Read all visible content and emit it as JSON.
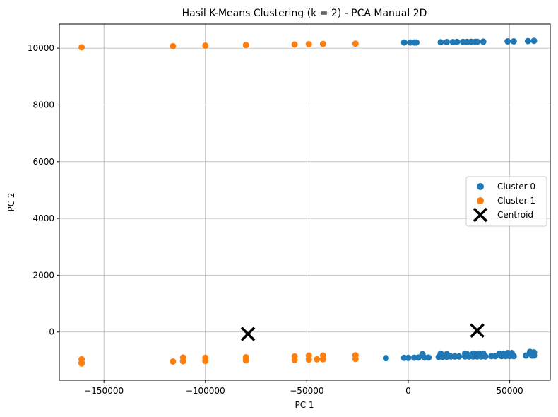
{
  "chart_data": {
    "type": "scatter",
    "title": "Hasil K-Means Clustering (k = 2) - PCA Manual 2D",
    "xlabel": "PC 1",
    "ylabel": "PC 2",
    "xlim": [
      -172000,
      70000
    ],
    "ylim": [
      -1700,
      10850
    ],
    "xticks": [
      -150000,
      -100000,
      -50000,
      0,
      50000
    ],
    "xtick_labels": [
      "−150000",
      "−100000",
      "−50000",
      "0",
      "50000"
    ],
    "yticks": [
      0,
      2000,
      4000,
      6000,
      8000,
      10000
    ],
    "ytick_labels": [
      "0",
      "2000",
      "4000",
      "6000",
      "8000",
      "10000"
    ],
    "grid": true,
    "legend_position": "center-right",
    "series": [
      {
        "name": "Cluster 0",
        "color": "#1f77b4",
        "points": [
          [
            -2000,
            10200
          ],
          [
            1000,
            10200
          ],
          [
            3000,
            10200
          ],
          [
            4000,
            10200
          ],
          [
            16000,
            10210
          ],
          [
            19000,
            10215
          ],
          [
            22000,
            10215
          ],
          [
            24000,
            10220
          ],
          [
            27000,
            10220
          ],
          [
            29000,
            10220
          ],
          [
            31000,
            10225
          ],
          [
            33000,
            10225
          ],
          [
            34000,
            10225
          ],
          [
            37000,
            10230
          ],
          [
            49000,
            10240
          ],
          [
            52000,
            10240
          ],
          [
            59000,
            10250
          ],
          [
            62000,
            10260
          ],
          [
            -11000,
            -920
          ],
          [
            -2000,
            -910
          ],
          [
            0,
            -910
          ],
          [
            3000,
            -905
          ],
          [
            5000,
            -900
          ],
          [
            7000,
            -780
          ],
          [
            8000,
            -900
          ],
          [
            10000,
            -900
          ],
          [
            15000,
            -880
          ],
          [
            16000,
            -760
          ],
          [
            17000,
            -870
          ],
          [
            19000,
            -780
          ],
          [
            19000,
            -870
          ],
          [
            21000,
            -860
          ],
          [
            23000,
            -860
          ],
          [
            25000,
            -860
          ],
          [
            28000,
            -760
          ],
          [
            28000,
            -860
          ],
          [
            29000,
            -780
          ],
          [
            30000,
            -860
          ],
          [
            32000,
            -760
          ],
          [
            32000,
            -860
          ],
          [
            33000,
            -780
          ],
          [
            34000,
            -860
          ],
          [
            35000,
            -760
          ],
          [
            36000,
            -860
          ],
          [
            37000,
            -760
          ],
          [
            38000,
            -860
          ],
          [
            41000,
            -850
          ],
          [
            43000,
            -850
          ],
          [
            45000,
            -760
          ],
          [
            46000,
            -850
          ],
          [
            47000,
            -760
          ],
          [
            48000,
            -850
          ],
          [
            49000,
            -740
          ],
          [
            50000,
            -850
          ],
          [
            51000,
            -740
          ],
          [
            52000,
            -850
          ],
          [
            58000,
            -830
          ],
          [
            60000,
            -700
          ],
          [
            61000,
            -830
          ],
          [
            62000,
            -720
          ],
          [
            62000,
            -830
          ]
        ]
      },
      {
        "name": "Cluster 1",
        "color": "#ff7f0e",
        "points": [
          [
            -161000,
            10030
          ],
          [
            -116000,
            10070
          ],
          [
            -100000,
            10090
          ],
          [
            -80000,
            10110
          ],
          [
            -56000,
            10130
          ],
          [
            -49000,
            10140
          ],
          [
            -42000,
            10150
          ],
          [
            -26000,
            10160
          ],
          [
            -161000,
            -960
          ],
          [
            -161000,
            -1080
          ],
          [
            -161000,
            -1110
          ],
          [
            -116000,
            -1040
          ],
          [
            -111000,
            -900
          ],
          [
            -111000,
            -1030
          ],
          [
            -100000,
            -910
          ],
          [
            -100000,
            -1020
          ],
          [
            -80000,
            -890
          ],
          [
            -80000,
            -1000
          ],
          [
            -56000,
            -860
          ],
          [
            -56000,
            -990
          ],
          [
            -49000,
            -830
          ],
          [
            -49000,
            -970
          ],
          [
            -45000,
            -960
          ],
          [
            -42000,
            -830
          ],
          [
            -42000,
            -960
          ],
          [
            -26000,
            -820
          ],
          [
            -26000,
            -950
          ]
        ]
      },
      {
        "name": "Centroid",
        "color": "#000000",
        "marker": "x",
        "points": [
          [
            -79000,
            -70
          ],
          [
            34000,
            50
          ]
        ]
      }
    ]
  }
}
